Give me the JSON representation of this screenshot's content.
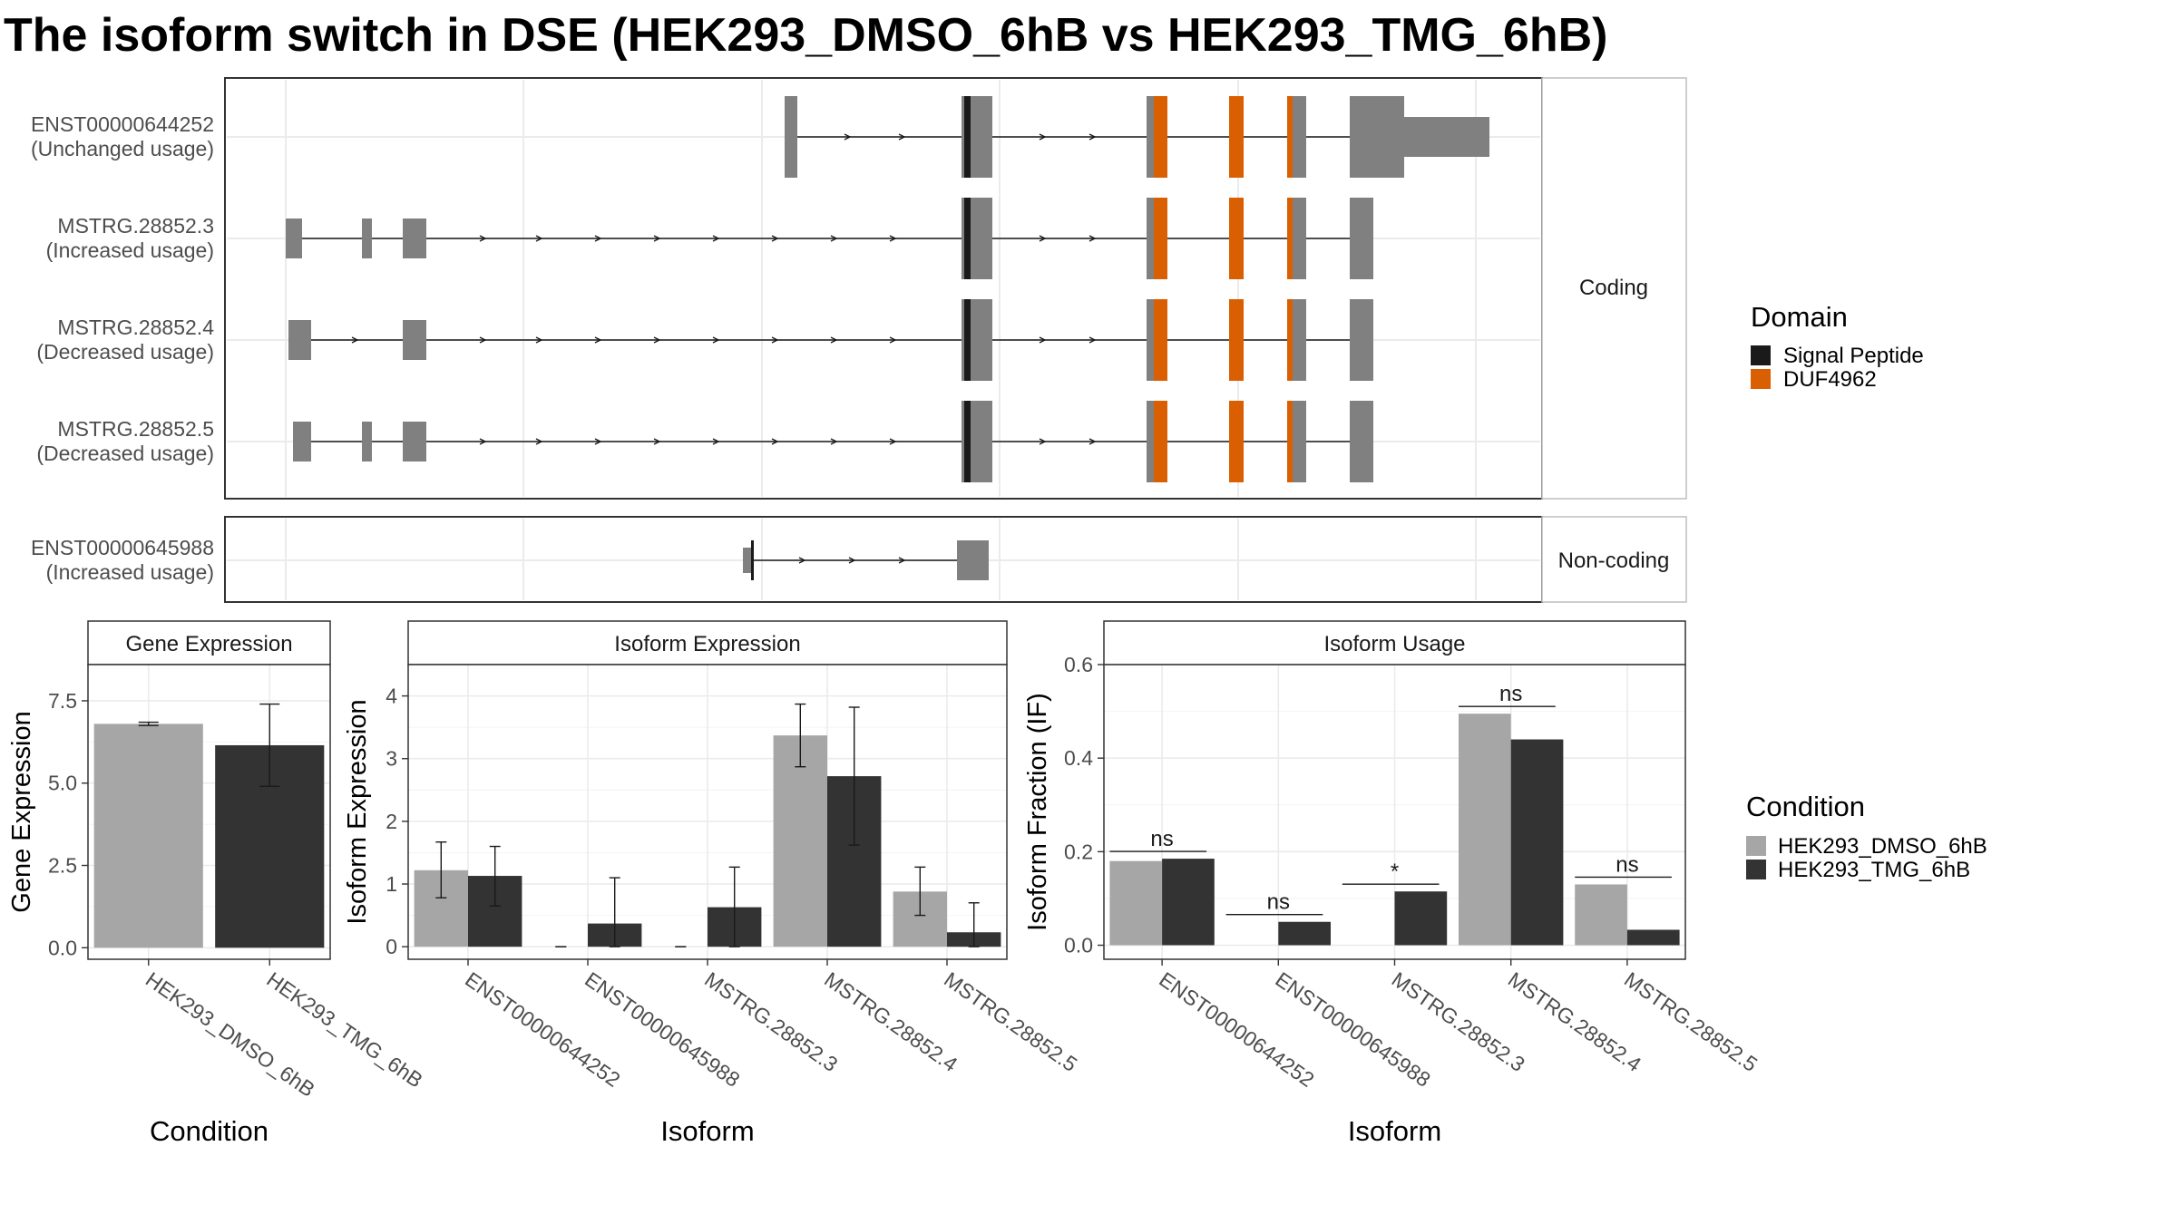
{
  "title": "The isoform switch in DSE (HEK293_DMSO_6hB vs HEK293_TMG_6hB)",
  "colors": {
    "exon": "#808080",
    "signal_peptide": "#1a1a1a",
    "duf": "#d95f02",
    "dmso": "#a6a6a6",
    "tmg": "#333333",
    "grid": "#ebebeb",
    "panel_border": "#333333",
    "strip_border": "#bdbdbd"
  },
  "structure": {
    "coding_label": "Coding",
    "noncoding_label": "Non-coding",
    "transcripts": [
      {
        "id": "ENST00000644252",
        "status": "(Unchanged usage)",
        "group": "coding"
      },
      {
        "id": "MSTRG.28852.3",
        "status": "(Increased usage)",
        "group": "coding"
      },
      {
        "id": "MSTRG.28852.4",
        "status": "(Decreased usage)",
        "group": "coding"
      },
      {
        "id": "MSTRG.28852.5",
        "status": "(Decreased usage)",
        "group": "coding"
      },
      {
        "id": "ENST00000645988",
        "status": "(Increased usage)",
        "group": "noncoding"
      }
    ]
  },
  "domain_legend": {
    "title": "Domain",
    "items": [
      {
        "label": "Signal Peptide",
        "color": "#1a1a1a"
      },
      {
        "label": "DUF4962",
        "color": "#d95f02"
      }
    ]
  },
  "condition_legend": {
    "title": "Condition",
    "items": [
      {
        "label": "HEK293_DMSO_6hB",
        "color": "#a6a6a6"
      },
      {
        "label": "HEK293_TMG_6hB",
        "color": "#333333"
      }
    ]
  },
  "chart_data": [
    {
      "type": "bar",
      "title": "Gene Expression",
      "xlabel": "Condition",
      "ylabel": "Gene Expression",
      "categories": [
        "HEK293_DMSO_6hB",
        "HEK293_TMG_6hB"
      ],
      "values": [
        6.8,
        6.15
      ],
      "err_low": [
        6.75,
        4.9
      ],
      "err_high": [
        6.85,
        7.4
      ],
      "ylim": [
        -0.35,
        8.6
      ],
      "yticks": [
        0.0,
        2.5,
        5.0,
        7.5
      ],
      "ytick_labels": [
        "0.0",
        "2.5",
        "5.0",
        "7.5"
      ]
    },
    {
      "type": "bar",
      "title": "Isoform Expression",
      "xlabel": "Isoform",
      "ylabel": "Isoform Expression",
      "categories": [
        "ENST00000644252",
        "ENST00000645988",
        "MSTRG.28852.3",
        "MSTRG.28852.4",
        "MSTRG.28852.5"
      ],
      "series": [
        {
          "name": "HEK293_DMSO_6hB",
          "values": [
            1.22,
            0,
            0,
            3.37,
            0.88
          ],
          "err_low": [
            0.78,
            0,
            0,
            2.87,
            0.5
          ],
          "err_high": [
            1.67,
            0,
            0,
            3.87,
            1.27
          ]
        },
        {
          "name": "HEK293_TMG_6hB",
          "values": [
            1.13,
            0.37,
            0.63,
            2.72,
            0.23
          ],
          "err_low": [
            0.65,
            0,
            0,
            1.62,
            0
          ],
          "err_high": [
            1.6,
            1.1,
            1.27,
            3.82,
            0.7
          ]
        }
      ],
      "ylim": [
        -0.2,
        4.5
      ],
      "yticks": [
        0,
        1,
        2,
        3,
        4
      ],
      "ytick_labels": [
        "0",
        "1",
        "2",
        "3",
        "4"
      ]
    },
    {
      "type": "bar",
      "title": "Isoform Usage",
      "xlabel": "Isoform",
      "ylabel": "Isoform Fraction (IF)",
      "categories": [
        "ENST00000644252",
        "ENST00000645988",
        "MSTRG.28852.3",
        "MSTRG.28852.4",
        "MSTRG.28852.5"
      ],
      "series": [
        {
          "name": "HEK293_DMSO_6hB",
          "values": [
            0.18,
            0,
            0,
            0.495,
            0.13
          ]
        },
        {
          "name": "HEK293_TMG_6hB",
          "values": [
            0.185,
            0.05,
            0.115,
            0.44,
            0.033
          ]
        }
      ],
      "significance": [
        "ns",
        "ns",
        "*",
        "ns",
        "ns"
      ],
      "ylim": [
        -0.03,
        0.6
      ],
      "yticks": [
        0.0,
        0.2,
        0.4,
        0.6
      ],
      "ytick_labels": [
        "0.0",
        "0.2",
        "0.4",
        "0.6"
      ]
    }
  ]
}
